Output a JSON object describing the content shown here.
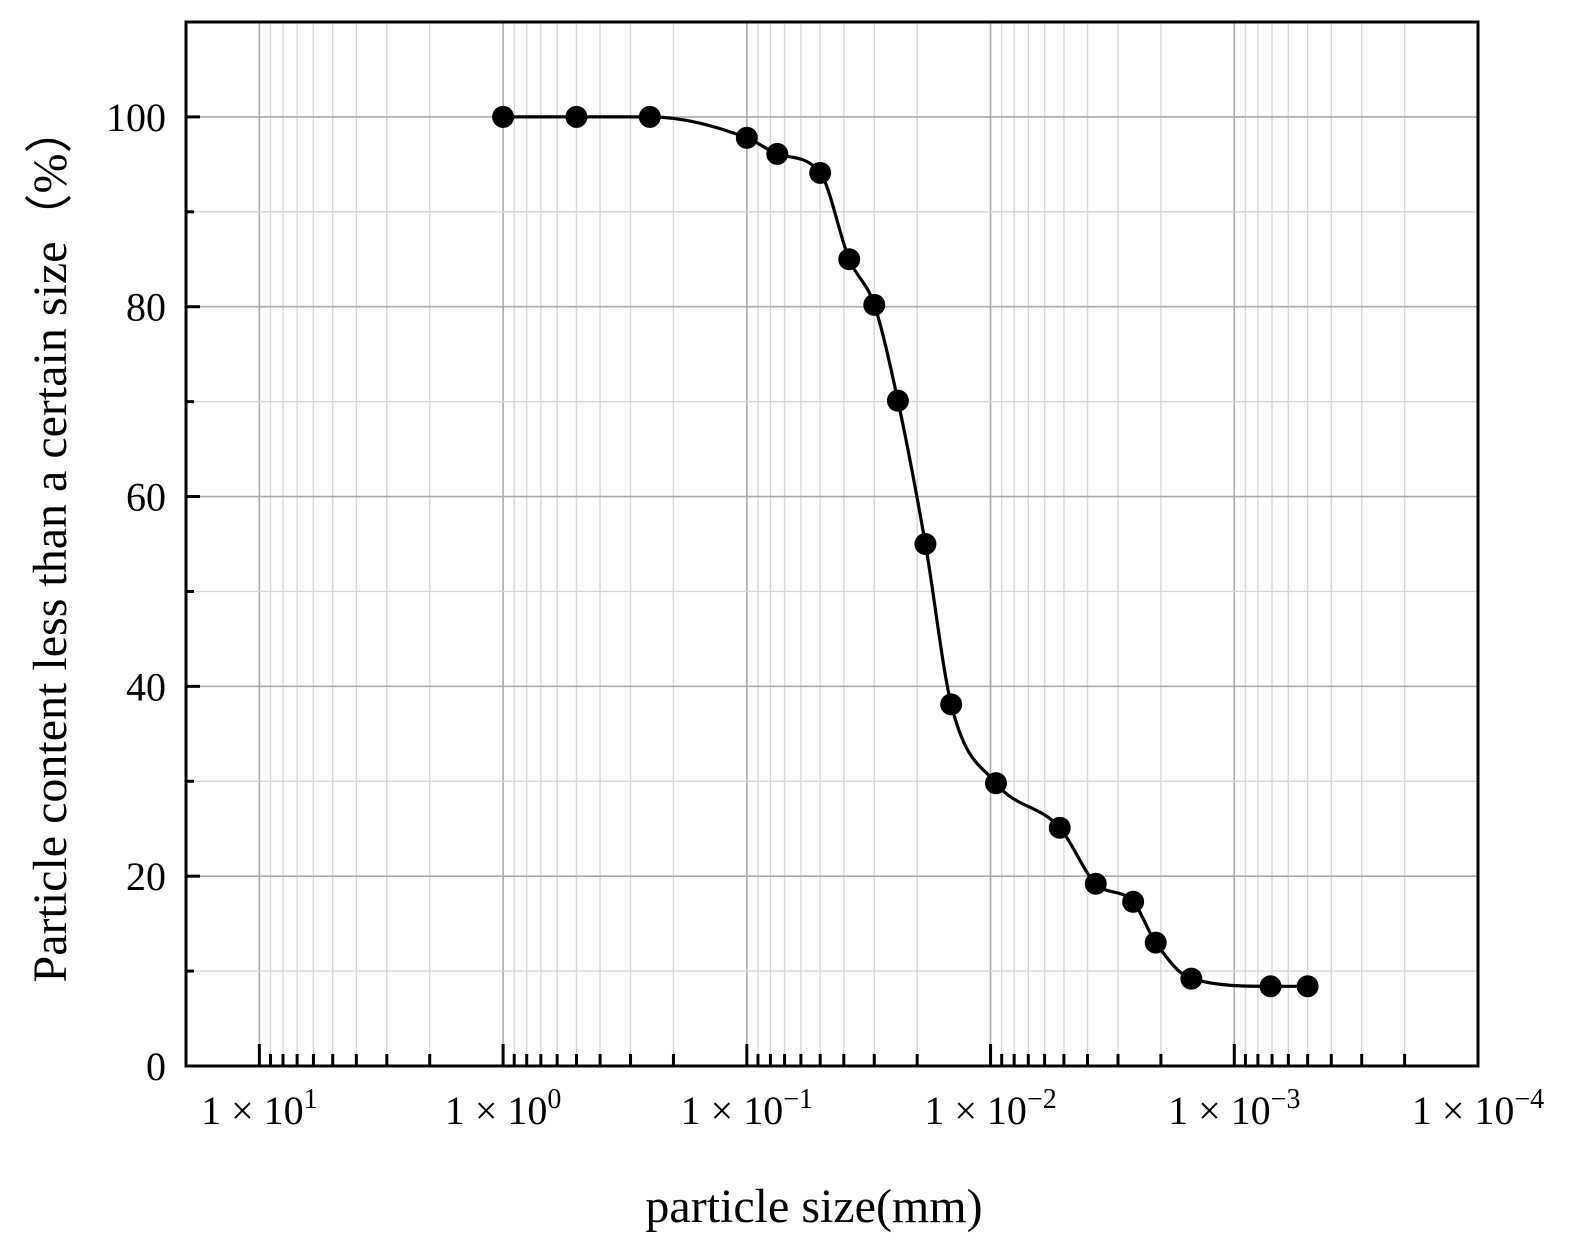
{
  "chart_data": {
    "type": "line",
    "xlabel": "particle size(mm)",
    "ylabel": "Particle content less than a certain size（%）",
    "xscale": "log",
    "xaxis_reversed": true,
    "xlim": [
      20,
      0.0001
    ],
    "ylim": [
      0,
      110
    ],
    "grid": true,
    "x_ticks": [
      {
        "value": 10,
        "base": "1 × 10",
        "exp": "1"
      },
      {
        "value": 1,
        "base": "1 × 10",
        "exp": "0"
      },
      {
        "value": 0.1,
        "base": "1 × 10",
        "exp": "−1"
      },
      {
        "value": 0.01,
        "base": "1 × 10",
        "exp": "−2"
      },
      {
        "value": 0.001,
        "base": "1 × 10",
        "exp": "−3"
      },
      {
        "value": 0.0001,
        "base": "1 × 10",
        "exp": "−4"
      }
    ],
    "y_ticks": [
      0,
      20,
      40,
      60,
      80,
      100
    ],
    "series": [
      {
        "marker": "circle",
        "color": "#000000",
        "x": [
          1,
          0.5,
          0.25,
          0.1,
          0.075,
          0.05,
          0.038,
          0.03,
          0.024,
          0.0185,
          0.0145,
          0.0095,
          0.0052,
          0.0037,
          0.0026,
          0.0021,
          0.0015,
          0.00071,
          0.0005
        ],
        "y": [
          100,
          100,
          100,
          97.8,
          96.1,
          94.1,
          85,
          80.2,
          70.1,
          55,
          38.1,
          29.8,
          25.1,
          19.2,
          17.3,
          13,
          9.2,
          8.4,
          8.4
        ]
      }
    ]
  }
}
